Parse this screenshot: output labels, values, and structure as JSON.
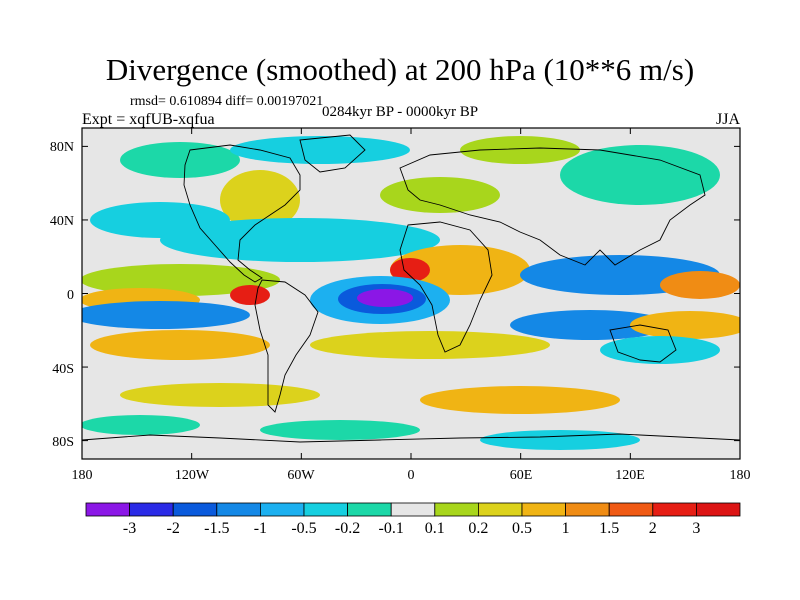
{
  "title": "Divergence (smoothed) at 200 hPa (10**6 m/s)",
  "stats": "rmsd= 0.610894 diff= 0.00197021",
  "experiment": "Expt = xqfUB-xqfua",
  "period": "0284kyr BP - 0000kyr BP",
  "season": "JJA",
  "y_axis_labels": [
    "80N",
    "40N",
    "0",
    "40S",
    "80S"
  ],
  "x_axis_labels": [
    "180",
    "120W",
    "60W",
    "0",
    "60E",
    "120E",
    "180"
  ],
  "colorbar": {
    "labels": [
      "-3",
      "-2",
      "-1.5",
      "-1",
      "-0.5",
      "-0.2",
      "-0.1",
      "0.1",
      "0.2",
      "0.5",
      "1",
      "1.5",
      "2",
      "3"
    ],
    "colors": [
      "#8b17e6",
      "#2a2ae6",
      "#0a5adc",
      "#1488e6",
      "#1cb0f0",
      "#16cfe0",
      "#1cd8a8",
      "#e6e6e6",
      "#a8d61c",
      "#dcd21c",
      "#f0b414",
      "#f08c14",
      "#f05a14",
      "#e61e14",
      "#dc1414"
    ]
  },
  "map_colors": {
    "neutral": "#e6e6e6",
    "coast": "#000000"
  }
}
